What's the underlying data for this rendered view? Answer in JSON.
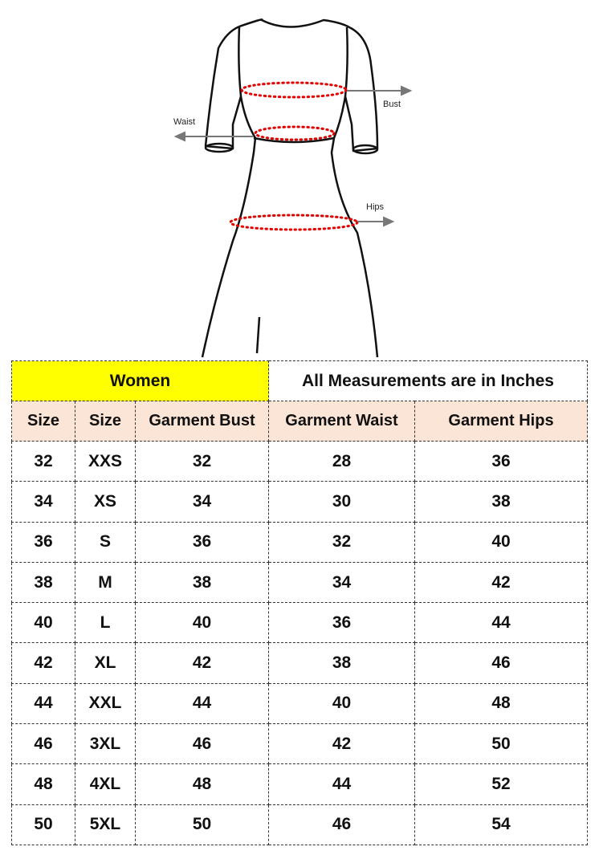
{
  "diagram": {
    "labels": {
      "bust": "Bust",
      "waist": "Waist",
      "hips": "Hips"
    },
    "colors": {
      "measure_line": "#e00000",
      "arrow": "#777777",
      "outline": "#111111"
    }
  },
  "table": {
    "title_left": "Women",
    "title_right": "All Measurements are in Inches",
    "headers": [
      "Size",
      "Size",
      "Garment Bust",
      "Garment Waist",
      "Garment Hips"
    ],
    "rows": [
      [
        "32",
        "XXS",
        "32",
        "28",
        "36"
      ],
      [
        "34",
        "XS",
        "34",
        "30",
        "38"
      ],
      [
        "36",
        "S",
        "36",
        "32",
        "40"
      ],
      [
        "38",
        "M",
        "38",
        "34",
        "42"
      ],
      [
        "40",
        "L",
        "40",
        "36",
        "44"
      ],
      [
        "42",
        "XL",
        "42",
        "38",
        "46"
      ],
      [
        "44",
        "XXL",
        "44",
        "40",
        "48"
      ],
      [
        "46",
        "3XL",
        "46",
        "42",
        "50"
      ],
      [
        "48",
        "4XL",
        "48",
        "44",
        "52"
      ],
      [
        "50",
        "5XL",
        "50",
        "46",
        "54"
      ]
    ],
    "colors": {
      "title_bg": "#ffff00",
      "header_bg": "#fbe5d6"
    }
  }
}
